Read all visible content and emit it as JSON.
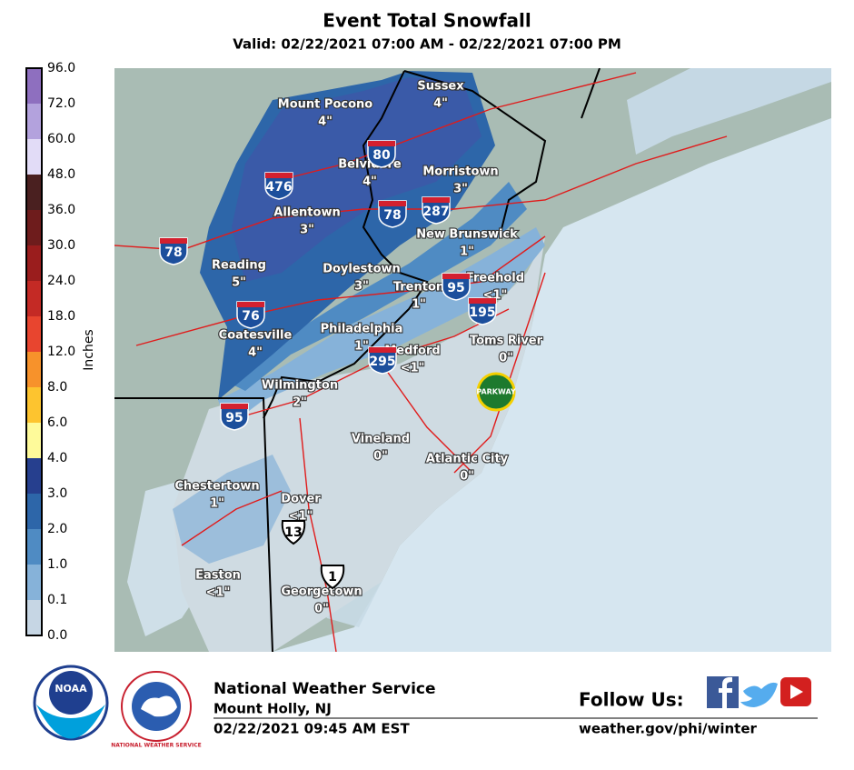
{
  "header": {
    "title": "Event Total Snowfall",
    "subtitle": "Valid: 02/22/2021 07:00 AM - 02/22/2021 07:00 PM"
  },
  "legend": {
    "label": "Inches",
    "ticks": [
      "96.0",
      "72.0",
      "60.0",
      "48.0",
      "36.0",
      "30.0",
      "24.0",
      "18.0",
      "12.0",
      "8.0",
      "6.0",
      "4.0",
      "3.0",
      "2.0",
      "1.0",
      "0.1",
      "0.0"
    ],
    "colors": [
      "#8e6fbf",
      "#b3a2dd",
      "#e2dcf7",
      "#4a2020",
      "#6e1c1c",
      "#9a1d1d",
      "#c42a25",
      "#e8452f",
      "#f7922b",
      "#fdc42f",
      "#fefa9a",
      "#263f8e",
      "#2d66a9",
      "#4f8bc3",
      "#86b2d9",
      "#c6d6e4"
    ]
  },
  "cities": [
    {
      "name": "Mount Pocono",
      "amount": "4\""
    },
    {
      "name": "Sussex",
      "amount": "4\""
    },
    {
      "name": "Belvidere",
      "amount": "4\""
    },
    {
      "name": "Morristown",
      "amount": "3\""
    },
    {
      "name": "Allentown",
      "amount": "3\""
    },
    {
      "name": "New Brunswick",
      "amount": "1\""
    },
    {
      "name": "Reading",
      "amount": "5\""
    },
    {
      "name": "Doylestown",
      "amount": "3\""
    },
    {
      "name": "Trenton",
      "amount": "1\""
    },
    {
      "name": "Freehold",
      "amount": "<1\""
    },
    {
      "name": "Coatesville",
      "amount": "4\""
    },
    {
      "name": "Philadelphia",
      "amount": "1\""
    },
    {
      "name": "Medford",
      "amount": "<1\""
    },
    {
      "name": "Toms River",
      "amount": "0\""
    },
    {
      "name": "Wilmington",
      "amount": "2\""
    },
    {
      "name": "Vineland",
      "amount": "0\""
    },
    {
      "name": "Atlantic City",
      "amount": "0\""
    },
    {
      "name": "Chestertown",
      "amount": "1\""
    },
    {
      "name": "Dover",
      "amount": "<1\""
    },
    {
      "name": "Easton",
      "amount": "<1\""
    },
    {
      "name": "Georgetown",
      "amount": "0\""
    }
  ],
  "shields": [
    "80",
    "476",
    "78",
    "287",
    "78",
    "95",
    "76",
    "195",
    "295",
    "95",
    "13",
    "1"
  ],
  "parkway": "PARKWAY",
  "logos": {
    "noaa": "NOAA",
    "nws": "NATIONAL WEATHER SERVICE"
  },
  "footer": {
    "office": "National Weather Service",
    "location": "Mount Holly, NJ",
    "issued": "02/22/2021 09:45 AM EST",
    "follow": "Follow Us:",
    "url": "weather.gov/phi/winter"
  }
}
